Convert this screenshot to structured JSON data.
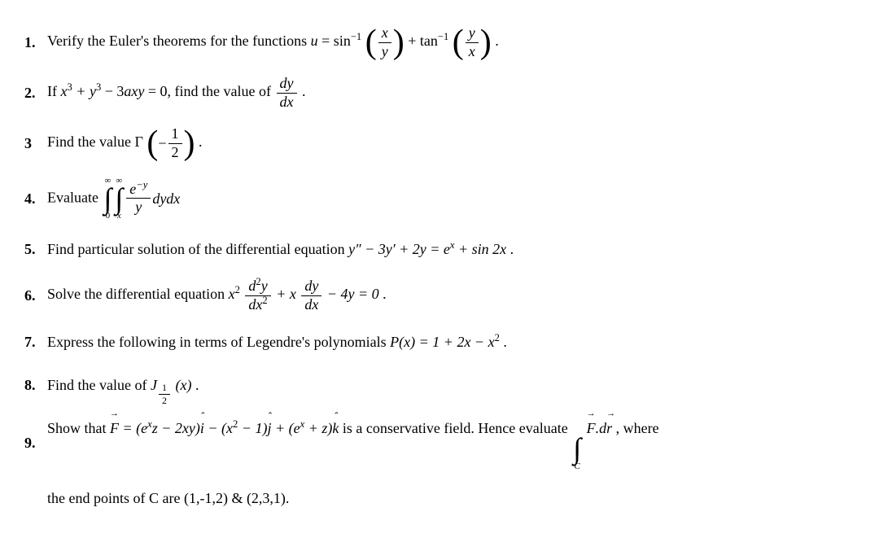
{
  "questions": [
    {
      "num": "1.",
      "pre": "Verify the Euler's theorems for the functions ",
      "u_eq": "u",
      "equals": " = sin",
      "sup1": "−1",
      "frac1_num": "x",
      "frac1_den": "y",
      "plus": " + tan",
      "sup2": "−1",
      "frac2_num": "y",
      "frac2_den": "x",
      "end": "."
    },
    {
      "num": "2.",
      "pre": "If ",
      "expr": "x",
      "e1": "3",
      "plus1": " + y",
      "e2": "3",
      "minus": " − 3",
      "axy": "axy",
      "eq0": " = 0,",
      "post": " find the value of ",
      "frac_num": "dy",
      "frac_den": "dx",
      "end": "."
    },
    {
      "num": "3",
      "pre": "Find the value  ",
      "gamma": "Γ",
      "minus": "−",
      "frac_num": "1",
      "frac_den": "2",
      "end": "."
    },
    {
      "num": "4.",
      "pre": "Evaluate ",
      "int1_upper": "∞",
      "int1_lower": "0",
      "int2_upper": "∞",
      "int2_lower": "x",
      "e_num_a": "e",
      "e_num_sup": "−y",
      "frac_den": "y",
      "dydx": "dydx"
    },
    {
      "num": "5.",
      "text_a": "Find particular solution of the differential equation ",
      "eq": "y″ − 3y′ + 2y = e",
      "sup": "x",
      "tail": " + sin 2x",
      "end": "."
    },
    {
      "num": "6.",
      "pre": "Solve the differential equation ",
      "x2": "x",
      "e1": "2",
      "frac1_num_a": "d",
      "frac1_num_sup": "2",
      "frac1_num_b": "y",
      "frac1_den_a": "dx",
      "frac1_den_sup": "2",
      "plus": " + x",
      "frac2_num": "dy",
      "frac2_den": "dx",
      "tail": " − 4y = 0",
      "end": "."
    },
    {
      "num": "7.",
      "pre": "Express the following in terms of Legendre's polynomials ",
      "eq": "P(x) = 1 + 2x − x",
      "sup": "2",
      "end": " ."
    },
    {
      "num": "8.",
      "pre": "Find the value of   ",
      "J": "J",
      "sub_num": "1",
      "sub_den": "2",
      "arg": "(x)",
      "end": "."
    },
    {
      "num": "9.",
      "pre": "Show that  ",
      "F": "F",
      "eq": " = (e",
      "supx1": "x",
      "z_minus": "z − 2xy)",
      "ihat": "i",
      "minus1": " − (x",
      "sup2": "2",
      "m1": " − 1)",
      "jhat": "j",
      "plus": " + (e",
      "supx2": "x",
      "pz": " + z)",
      "khat": "k",
      "mid": " is a conservative field. Hence evaluate ",
      "int_lower": "C",
      "F2": "F",
      "dot": ".d",
      "r": "r",
      "tail": " , where",
      "line2": "the end points of C are (1,-1,2) & (2,3,1)."
    }
  ]
}
